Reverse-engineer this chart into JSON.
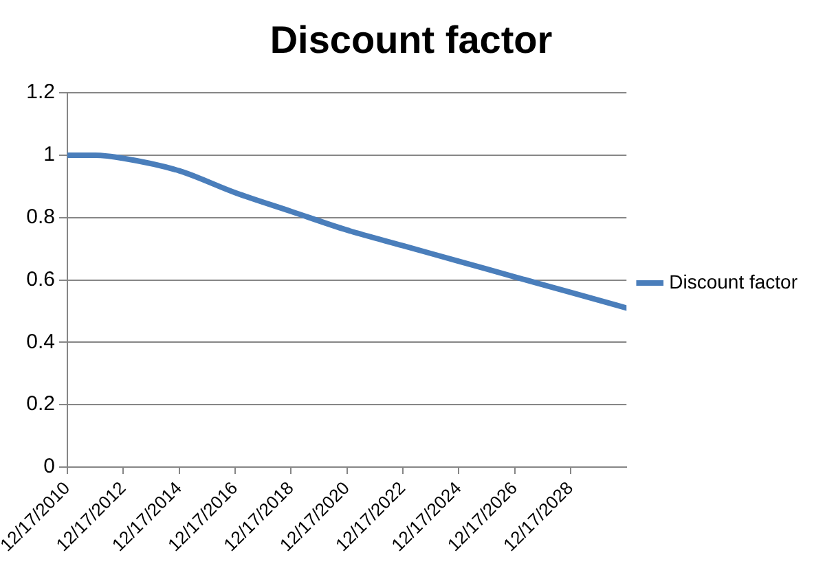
{
  "chart_data": {
    "type": "line",
    "title": "Discount factor",
    "x": [
      "2010-12-17",
      "2011-12-17",
      "2012-12-17",
      "2014-12-17",
      "2016-12-17",
      "2018-12-17",
      "2020-12-17",
      "2022-12-17",
      "2024-12-17",
      "2026-12-17",
      "2028-12-17",
      "2030-12-17"
    ],
    "series": [
      {
        "name": "Discount factor",
        "color": "#4a7ebb",
        "values": [
          1.0,
          1.0,
          0.99,
          0.95,
          0.88,
          0.82,
          0.76,
          0.71,
          0.66,
          0.61,
          0.56,
          0.51
        ]
      }
    ],
    "xlim": [
      "2010-12-17",
      "2030-12-17"
    ],
    "xticks": [
      {
        "value": "2010-12-17",
        "label": "12/17/2010"
      },
      {
        "value": "2012-12-17",
        "label": "12/17/2012"
      },
      {
        "value": "2014-12-17",
        "label": "12/17/2014"
      },
      {
        "value": "2016-12-17",
        "label": "12/17/2016"
      },
      {
        "value": "2018-12-17",
        "label": "12/17/2018"
      },
      {
        "value": "2020-12-17",
        "label": "12/17/2020"
      },
      {
        "value": "2022-12-17",
        "label": "12/17/2022"
      },
      {
        "value": "2024-12-17",
        "label": "12/17/2024"
      },
      {
        "value": "2026-12-17",
        "label": "12/17/2026"
      },
      {
        "value": "2028-12-17",
        "label": "12/17/2028"
      }
    ],
    "ylim": [
      0,
      1.2
    ],
    "yticks": [
      0,
      0.2,
      0.4,
      0.6,
      0.8,
      1,
      1.2
    ],
    "grid": "y",
    "legend": "right",
    "marker": "none",
    "line_style": "solid"
  }
}
